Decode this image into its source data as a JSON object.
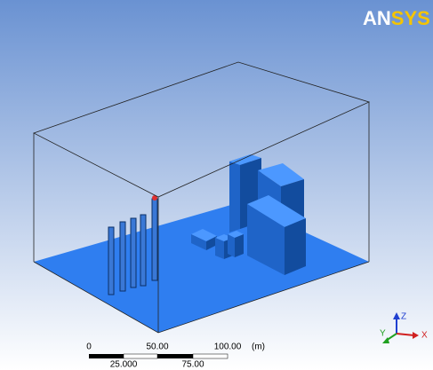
{
  "logo": {
    "part1": "AN",
    "part2": "SYS"
  },
  "scale": {
    "top_labels": [
      "0",
      "50.00",
      "100.00",
      "(m)"
    ],
    "bottom_labels": [
      "25.000",
      "75.00"
    ]
  },
  "triad": {
    "z": "Z",
    "y": "Y",
    "x": "X"
  }
}
